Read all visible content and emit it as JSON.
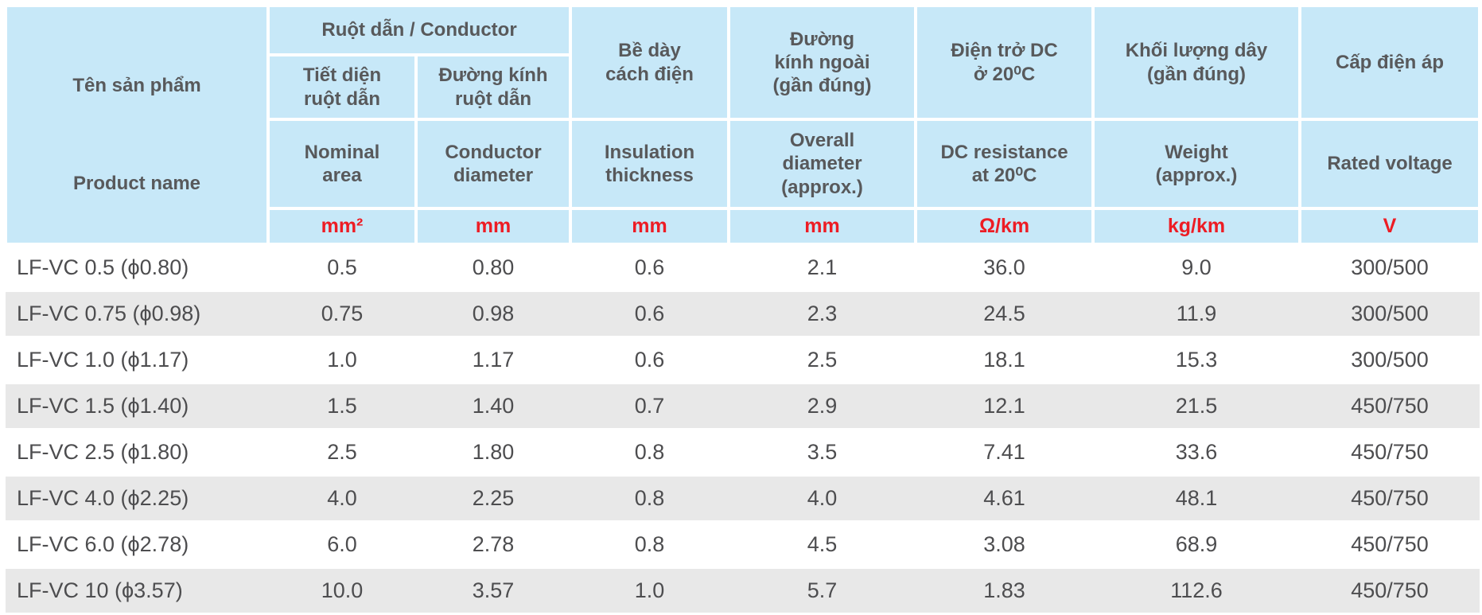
{
  "colors": {
    "header_bg": "#c7e8f8",
    "stripe_bg": "#e8e8e8",
    "unit_color": "#ed1c24",
    "header_text": "#58595b",
    "body_text": "#4d4d4f"
  },
  "table": {
    "product_header": {
      "vn": "Tên sản phẩm",
      "en": "Product name"
    },
    "conductor_group_label": "Ruột dẫn / Conductor",
    "columns": [
      {
        "vn": "Tiết diện\nruột dẫn",
        "en": "Nominal\narea",
        "unit": "mm²"
      },
      {
        "vn": "Đường kính\nruột dẫn",
        "en": "Conductor\ndiameter",
        "unit": "mm"
      },
      {
        "vn": "Bề dày\ncách điện",
        "en": "Insulation\nthickness",
        "unit": "mm"
      },
      {
        "vn": "Đường\nkính ngoài\n(gần đúng)",
        "en": "Overall\ndiameter\n(approx.)",
        "unit": "mm"
      },
      {
        "vn": "Điện trở DC\nở 20⁰C",
        "en": "DC resistance\nat 20⁰C",
        "unit": "Ω/km"
      },
      {
        "vn": "Khối lượng dây\n(gần đúng)",
        "en": "Weight\n(approx.)",
        "unit": "kg/km"
      },
      {
        "vn": "Cấp điện áp",
        "en": "Rated voltage",
        "unit": "V"
      }
    ],
    "rows": [
      {
        "name": "LF-VC 0.5 (ϕ0.80)",
        "values": [
          "0.5",
          "0.80",
          "0.6",
          "2.1",
          "36.0",
          "9.0",
          "300/500"
        ]
      },
      {
        "name": "LF-VC 0.75 (ϕ0.98)",
        "values": [
          "0.75",
          "0.98",
          "0.6",
          "2.3",
          "24.5",
          "11.9",
          "300/500"
        ]
      },
      {
        "name": "LF-VC 1.0 (ϕ1.17)",
        "values": [
          "1.0",
          "1.17",
          "0.6",
          "2.5",
          "18.1",
          "15.3",
          "300/500"
        ]
      },
      {
        "name": "LF-VC 1.5 (ϕ1.40)",
        "values": [
          "1.5",
          "1.40",
          "0.7",
          "2.9",
          "12.1",
          "21.5",
          "450/750"
        ]
      },
      {
        "name": "LF-VC 2.5 (ϕ1.80)",
        "values": [
          "2.5",
          "1.80",
          "0.8",
          "3.5",
          "7.41",
          "33.6",
          "450/750"
        ]
      },
      {
        "name": "LF-VC 4.0 (ϕ2.25)",
        "values": [
          "4.0",
          "2.25",
          "0.8",
          "4.0",
          "4.61",
          "48.1",
          "450/750"
        ]
      },
      {
        "name": "LF-VC 6.0 (ϕ2.78)",
        "values": [
          "6.0",
          "2.78",
          "0.8",
          "4.5",
          "3.08",
          "68.9",
          "450/750"
        ]
      },
      {
        "name": "LF-VC 10 (ϕ3.57)",
        "values": [
          "10.0",
          "3.57",
          "1.0",
          "5.7",
          "1.83",
          "112.6",
          "450/750"
        ]
      }
    ]
  }
}
